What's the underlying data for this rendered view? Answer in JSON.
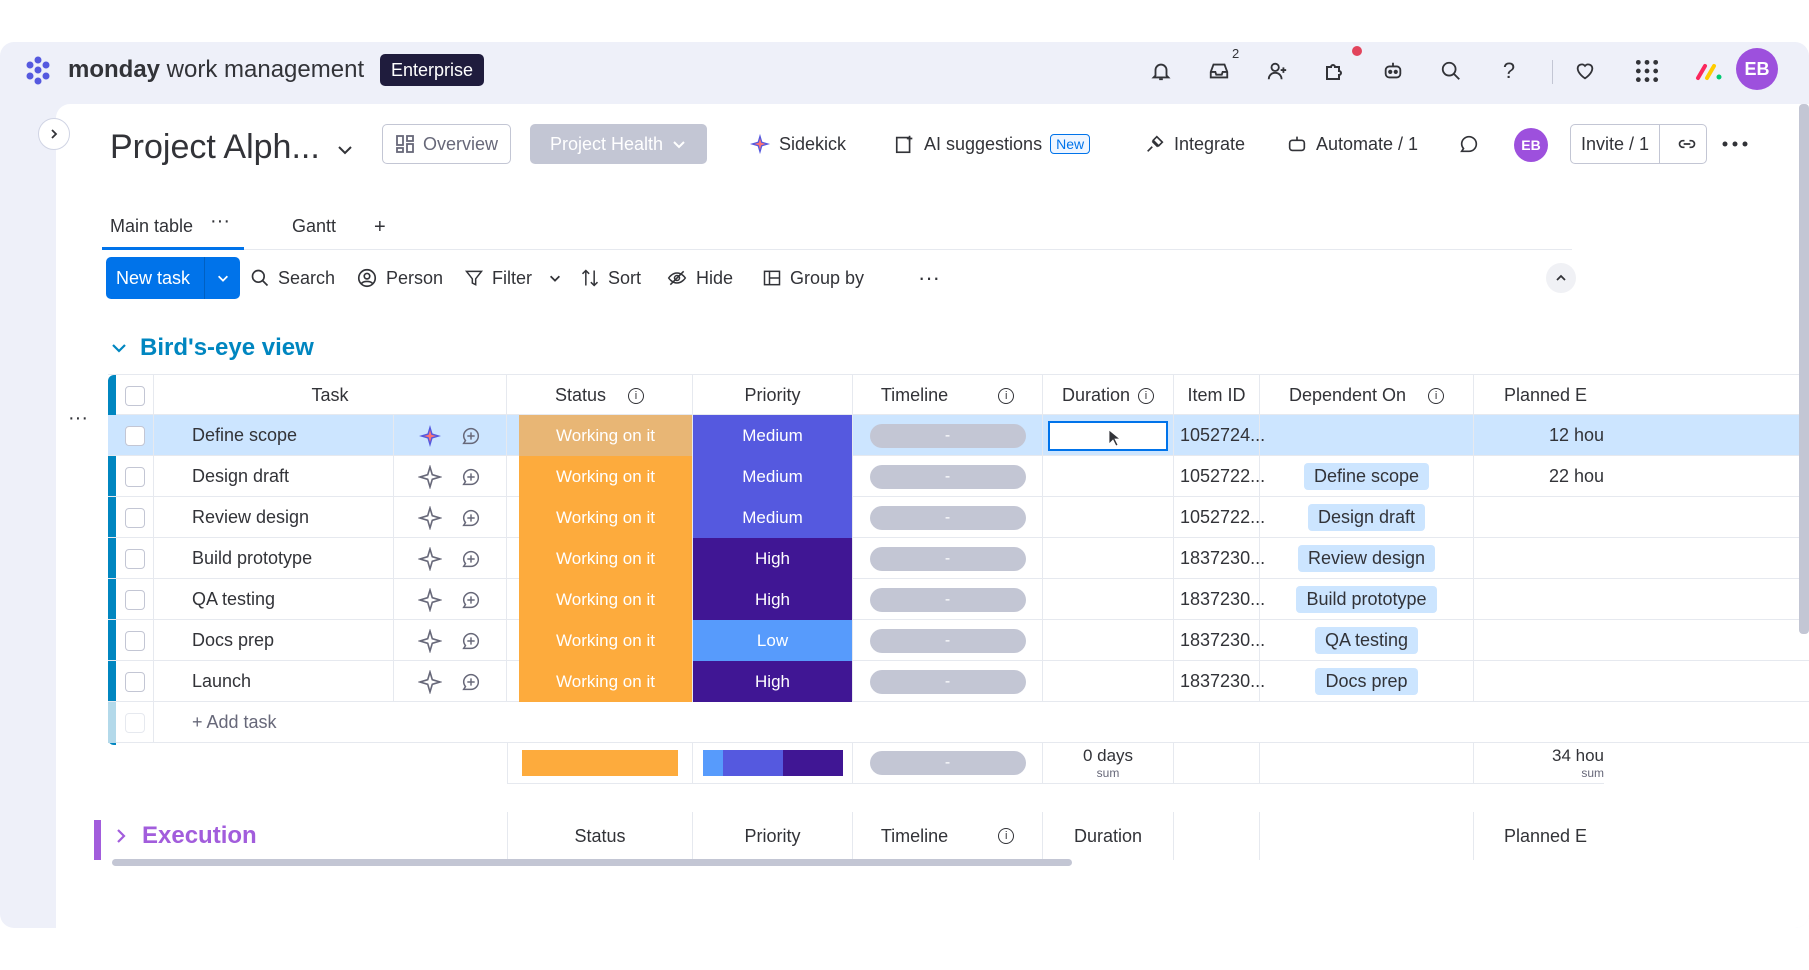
{
  "topbar": {
    "brand_bold": "monday",
    "brand_rest": " work management",
    "plan_badge": "Enterprise",
    "inbox_count": "2",
    "user_initials": "EB"
  },
  "board": {
    "title": "Project Alph...",
    "overview_label": "Overview",
    "project_health_label": "Project Health",
    "sidekick_label": "Sidekick",
    "ai_suggestions_label": "AI suggestions",
    "new_tag": "New",
    "integrate_label": "Integrate",
    "automate_label": "Automate / 1",
    "owner_initials": "EB",
    "invite_label": "Invite / 1"
  },
  "tabs": [
    {
      "label": "Main table"
    },
    {
      "label": "Gantt"
    }
  ],
  "toolbar": {
    "new_task_label": "New task",
    "search_label": "Search",
    "person_label": "Person",
    "filter_label": "Filter",
    "sort_label": "Sort",
    "hide_label": "Hide",
    "group_by_label": "Group by"
  },
  "group1": {
    "title": "Bird's-eye view",
    "color": "#0086c0",
    "columns": {
      "task": "Task",
      "status": "Status",
      "priority": "Priority",
      "timeline": "Timeline",
      "duration": "Duration",
      "item_id": "Item ID",
      "dependent_on": "Dependent On",
      "planned": "Planned E"
    },
    "rows": [
      {
        "task": "Define scope",
        "status": "Working on it",
        "priority": "Medium",
        "priority_color": "#5559df",
        "timeline": "-",
        "item_id": "1052724...",
        "dependent_on": "",
        "planned": "12 hou"
      },
      {
        "task": "Design draft",
        "status": "Working on it",
        "priority": "Medium",
        "priority_color": "#5559df",
        "timeline": "-",
        "item_id": "1052722...",
        "dependent_on": "Define scope",
        "planned": "22 hou"
      },
      {
        "task": "Review design",
        "status": "Working on it",
        "priority": "Medium",
        "priority_color": "#5559df",
        "timeline": "-",
        "item_id": "1052722...",
        "dependent_on": "Design draft",
        "planned": ""
      },
      {
        "task": "Build prototype",
        "status": "Working on it",
        "priority": "High",
        "priority_color": "#401694",
        "timeline": "-",
        "item_id": "1837230...",
        "dependent_on": "Review design",
        "planned": ""
      },
      {
        "task": "QA testing",
        "status": "Working on it",
        "priority": "High",
        "priority_color": "#401694",
        "timeline": "-",
        "item_id": "1837230...",
        "dependent_on": "Build prototype",
        "planned": ""
      },
      {
        "task": "Docs prep",
        "status": "Working on it",
        "priority": "Low",
        "priority_color": "#579bfc",
        "timeline": "-",
        "item_id": "1837230...",
        "dependent_on": "QA testing",
        "planned": ""
      },
      {
        "task": "Launch",
        "status": "Working on it",
        "priority": "High",
        "priority_color": "#401694",
        "timeline": "-",
        "item_id": "1837230...",
        "dependent_on": "Docs prep",
        "planned": ""
      }
    ],
    "add_task_label": "+ Add task",
    "summary": {
      "timeline": "-",
      "duration_value": "0 days",
      "duration_sub": "sum",
      "planned_value": "34 hou",
      "planned_sub": "sum"
    }
  },
  "group2": {
    "title": "Execution",
    "color": "#a25ddc",
    "columns": {
      "status": "Status",
      "priority": "Priority",
      "timeline": "Timeline",
      "duration": "Duration",
      "planned": "Planned E"
    }
  },
  "colors": {
    "status_orange": "#fdab3d",
    "status_orange_dim": "#e8b675",
    "accent_blue": "#0073ea"
  }
}
